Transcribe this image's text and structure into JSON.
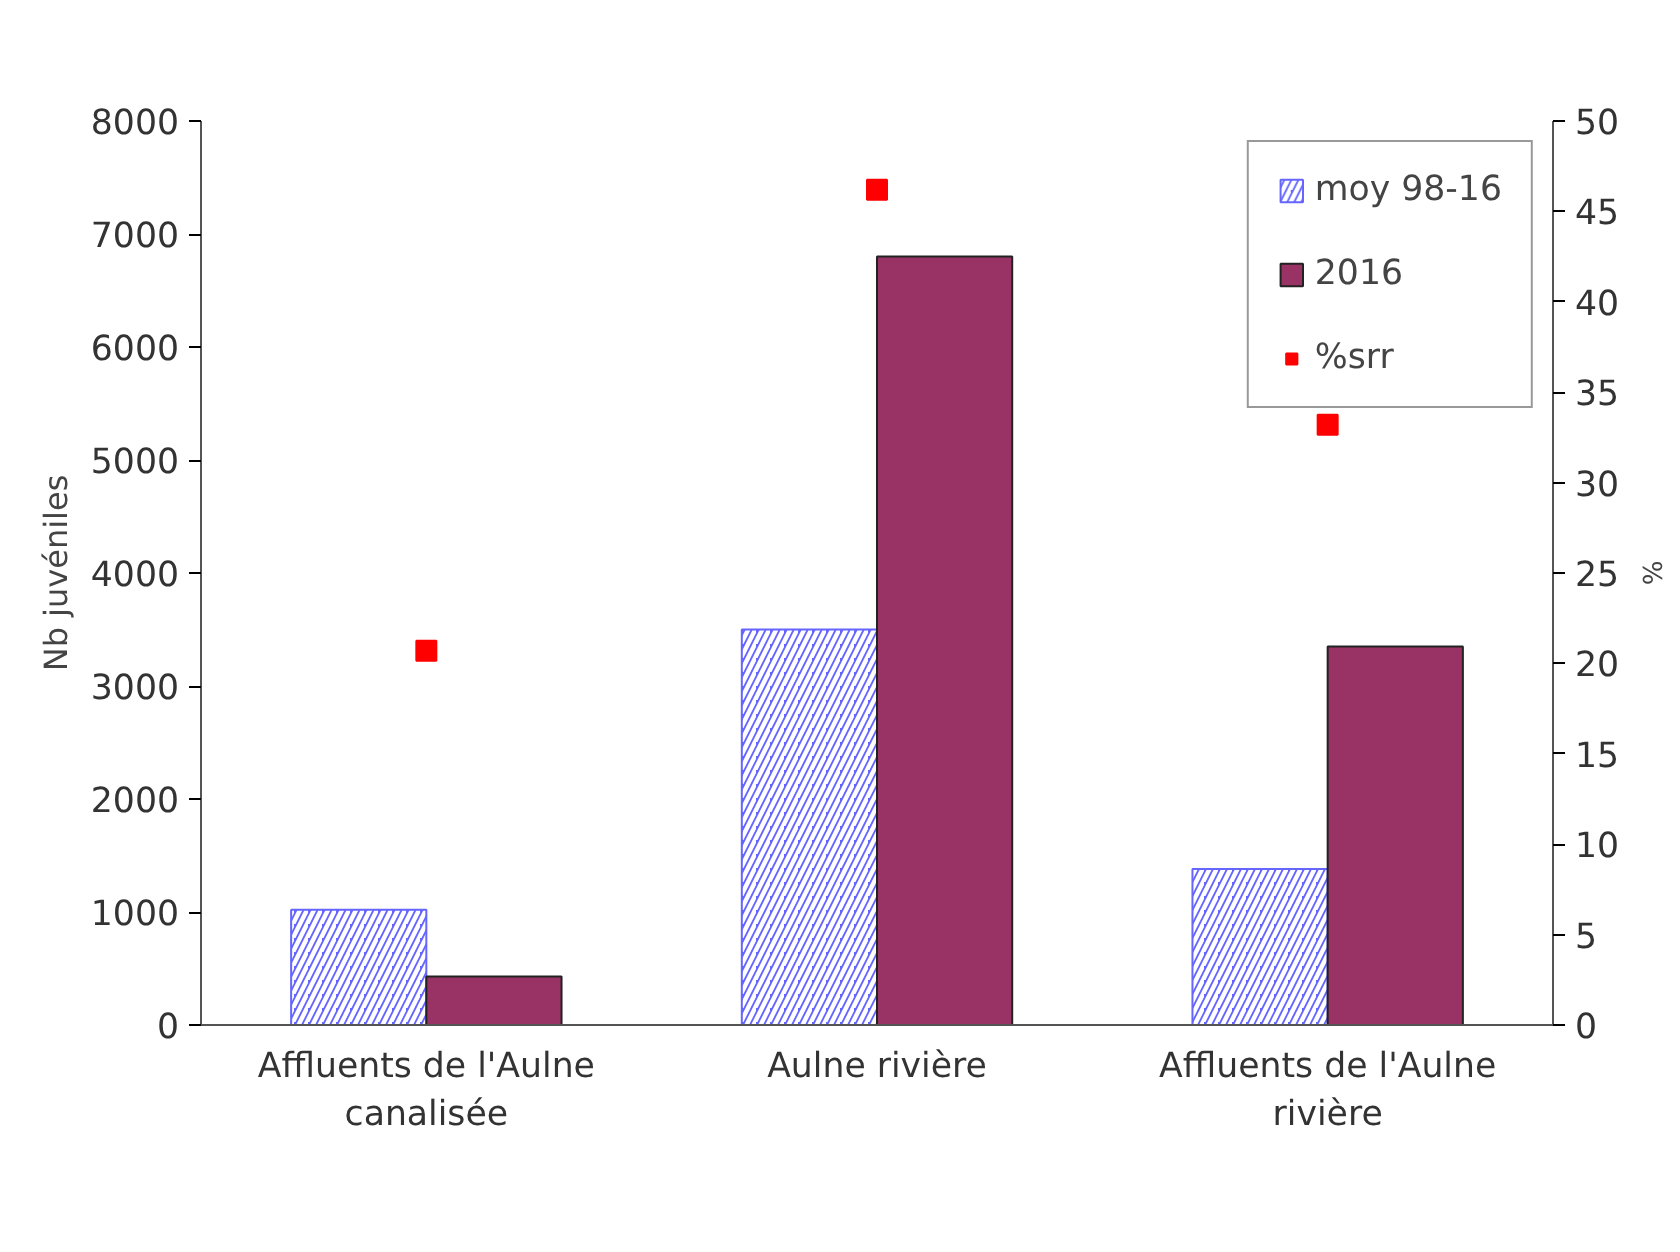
{
  "chart_data": {
    "type": "bar",
    "categories": [
      "Affluents de l'Aulne canalisée",
      "Aulne rivière",
      "Affluents de l'Aulne rivière"
    ],
    "series": [
      {
        "name": "moy 98-16",
        "color": "#6666ff",
        "values": [
          1020,
          3500,
          1380
        ]
      },
      {
        "name": "2016",
        "color": "#993366",
        "values": [
          430,
          6800,
          3350
        ]
      },
      {
        "name": "%srr",
        "type": "scatter",
        "axis": "y2",
        "color": "#ff0000",
        "values": [
          20.7,
          46.2,
          33.2
        ]
      }
    ],
    "ylabel": "Nb juvéniles",
    "y2label": "%",
    "ylim": [
      0,
      8000
    ],
    "yticks": [
      0,
      1000,
      2000,
      3000,
      4000,
      5000,
      6000,
      7000,
      8000
    ],
    "y2lim": [
      0,
      50
    ],
    "y2ticks": [
      0,
      5,
      10,
      15,
      20,
      25,
      30,
      35,
      40,
      45,
      50
    ],
    "marker": "square",
    "grid": false,
    "legend": "top right"
  }
}
